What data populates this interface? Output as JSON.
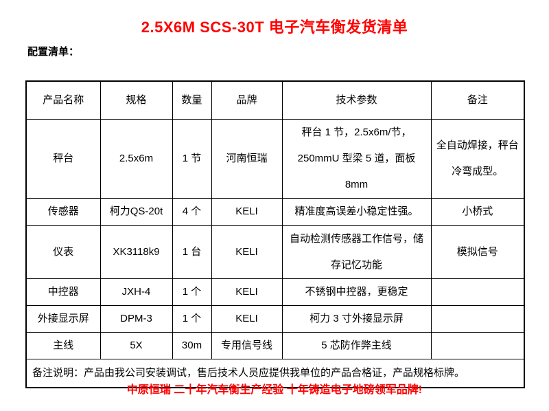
{
  "page": {
    "title": "2.5X6M SCS-30T 电子汽车衡发货清单",
    "subtitle": "配置清单：",
    "slogan": "中原恒瑞 二十年汽车衡生产经验 十年铸造电子地磅领军品牌!",
    "title_color": "#ff0000",
    "slogan_color": "#ff0000",
    "body_color": "#000000"
  },
  "table": {
    "headers": [
      "产品名称",
      "规格",
      "数量",
      "品牌",
      "技术参数",
      "备注"
    ],
    "rows": [
      {
        "name": "秤台",
        "spec": "2.5x6m",
        "qty": "1 节",
        "brand": "河南恒瑞",
        "params": "秤台 1 节，2.5x6m/节，250mmU 型梁 5 道，面板 8mm",
        "note": "全自动焊接，秤台冷弯成型。"
      },
      {
        "name": "传感器",
        "spec": "柯力QS-20t",
        "qty": "4 个",
        "brand": "KELI",
        "params": "精准度高误差小稳定性强。",
        "note": "小桥式"
      },
      {
        "name": "仪表",
        "spec": "XK3118k9",
        "qty": "1 台",
        "brand": "KELI",
        "params": "自动检测传感器工作信号，储存记忆功能",
        "note": "模拟信号"
      },
      {
        "name": "中控器",
        "spec": "JXH-4",
        "qty": "1 个",
        "brand": "KELI",
        "params": "不锈钢中控器，更稳定",
        "note": ""
      },
      {
        "name": "外接显示屏",
        "spec": "DPM-3",
        "qty": "1 个",
        "brand": "KELI",
        "params": "柯力 3 寸外接显示屏",
        "note": ""
      },
      {
        "name": "主线",
        "spec": "5X",
        "qty": "30m",
        "brand": "专用信号线",
        "params": "5 芯防作弊主线",
        "note": ""
      }
    ],
    "footer": "备注说明：产品由我公司安装调试，售后技术人员应提供我单位的产品合格证，产品规格标牌。"
  }
}
